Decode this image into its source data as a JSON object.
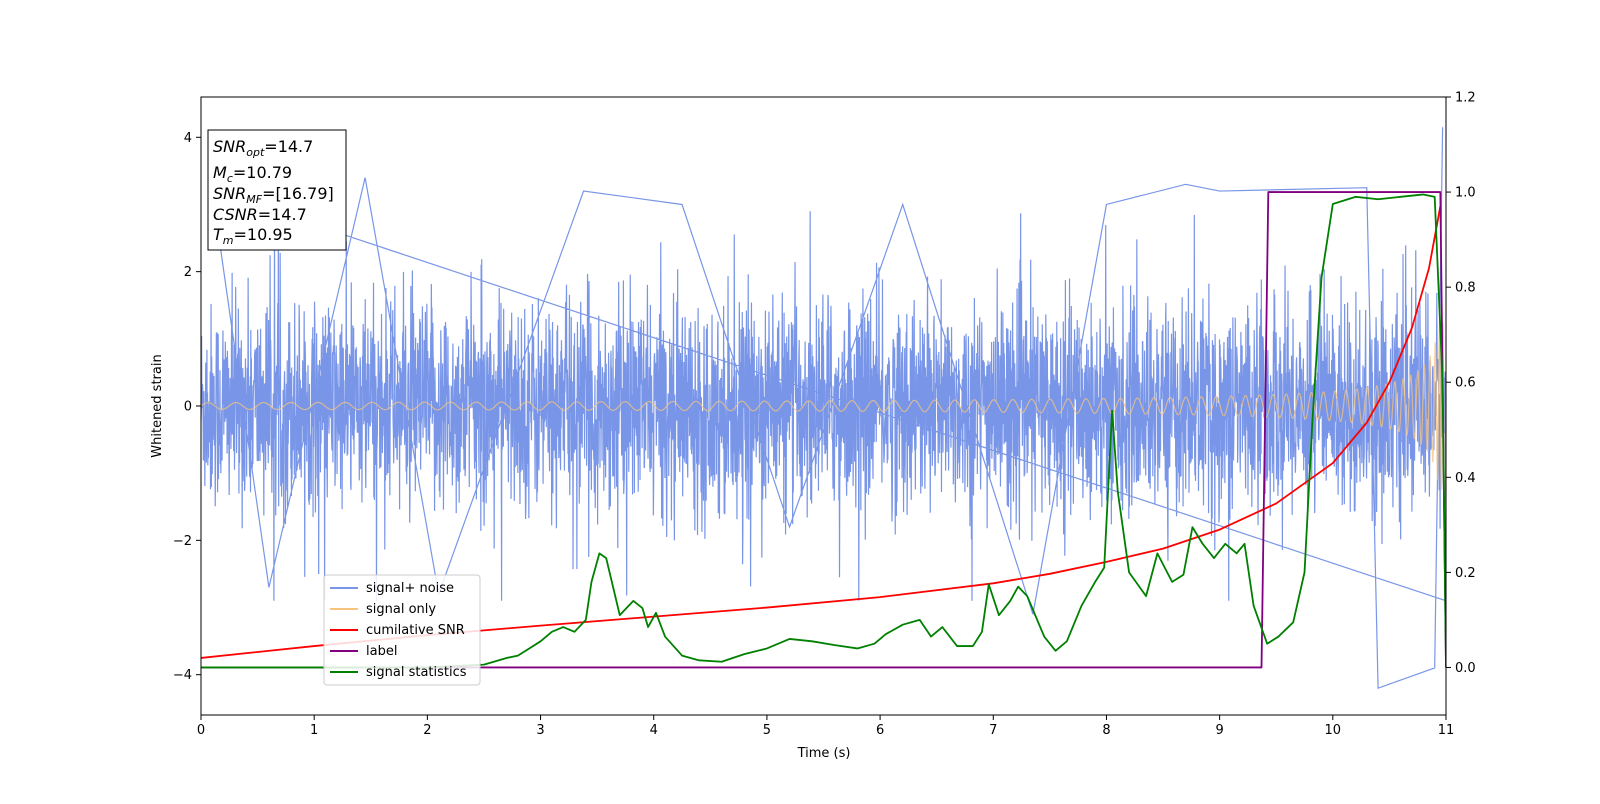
{
  "chart_data": {
    "type": "line",
    "xlabel": "Time (s)",
    "ylabel": "Whitened strain",
    "xlim": [
      0,
      11
    ],
    "ylim": [
      -4.6,
      4.6
    ],
    "y2lim": [
      -0.1,
      1.2
    ],
    "x_ticks": [
      "0",
      "1",
      "2",
      "3",
      "4",
      "5",
      "6",
      "7",
      "8",
      "9",
      "10",
      "11"
    ],
    "y_ticks": [
      "-4",
      "-2",
      "0",
      "2",
      "4"
    ],
    "y2_ticks": [
      "0.0",
      "0.2",
      "0.4",
      "0.6",
      "0.8",
      "1.0",
      "1.2"
    ],
    "grid": false,
    "legend_position": "lower-left",
    "info_box": {
      "snr_opt": {
        "base": "SNR",
        "sub": "opt",
        "value": "=14.7"
      },
      "mc": {
        "base": "M",
        "sub": "c",
        "value": "=10.79"
      },
      "snr_mf": {
        "base": "SNR",
        "sub": "MF",
        "value": "=[16.79]"
      },
      "csnr": {
        "base": "CSNR",
        "value": "=14.7"
      },
      "tm": {
        "base": "T",
        "sub": "m",
        "value": "=10.95"
      }
    },
    "series": [
      {
        "name": "signal+ noise",
        "color": "#7895e8",
        "axis": "left",
        "kind": "noise",
        "band_sd": 0.75,
        "peaks": [
          [
            0.1,
            3.2
          ],
          [
            0.6,
            -2.7
          ],
          [
            1.45,
            3.4
          ],
          [
            2.1,
            -2.8
          ],
          [
            3.38,
            3.2
          ],
          [
            4.25,
            3.0
          ],
          [
            5.2,
            -1.8
          ],
          [
            6.2,
            3.0
          ],
          [
            7.35,
            -3.1
          ],
          [
            8.0,
            3.0
          ],
          [
            8.7,
            3.3
          ],
          [
            9.0,
            3.2
          ],
          [
            10.3,
            3.25
          ],
          [
            10.4,
            -4.2
          ],
          [
            10.9,
            -3.9
          ],
          [
            10.97,
            4.15
          ]
        ]
      },
      {
        "name": "signal only",
        "color": "#f6c47f",
        "axis": "left",
        "kind": "chirp",
        "tc": 11.0,
        "amp_start": 0.05,
        "amp_end": 1.25
      },
      {
        "name": "cumilative SNR",
        "color": "#ff0000",
        "axis": "right",
        "points": [
          [
            0,
            0.02
          ],
          [
            1,
            0.045
          ],
          [
            2,
            0.068
          ],
          [
            3,
            0.088
          ],
          [
            4,
            0.107
          ],
          [
            5,
            0.126
          ],
          [
            6,
            0.148
          ],
          [
            7,
            0.177
          ],
          [
            7.5,
            0.197
          ],
          [
            8,
            0.222
          ],
          [
            8.5,
            0.25
          ],
          [
            9,
            0.29
          ],
          [
            9.5,
            0.345
          ],
          [
            10,
            0.43
          ],
          [
            10.3,
            0.515
          ],
          [
            10.5,
            0.6
          ],
          [
            10.7,
            0.715
          ],
          [
            10.85,
            0.84
          ],
          [
            10.95,
            0.97
          ]
        ]
      },
      {
        "name": "label",
        "color": "#800080",
        "axis": "right",
        "points": [
          [
            0,
            0
          ],
          [
            9.37,
            0
          ],
          [
            9.43,
            1.0
          ],
          [
            10.95,
            1.0
          ],
          [
            11.0,
            0.0
          ]
        ]
      },
      {
        "name": "signal statistics",
        "color": "#008000",
        "axis": "right",
        "points": [
          [
            0,
            0
          ],
          [
            1,
            0
          ],
          [
            2,
            0
          ],
          [
            2.5,
            0.006
          ],
          [
            2.7,
            0.02
          ],
          [
            2.8,
            0.025
          ],
          [
            2.9,
            0.04
          ],
          [
            3.0,
            0.055
          ],
          [
            3.1,
            0.075
          ],
          [
            3.2,
            0.085
          ],
          [
            3.3,
            0.075
          ],
          [
            3.4,
            0.1
          ],
          [
            3.45,
            0.18
          ],
          [
            3.52,
            0.24
          ],
          [
            3.58,
            0.23
          ],
          [
            3.7,
            0.11
          ],
          [
            3.82,
            0.14
          ],
          [
            3.9,
            0.125
          ],
          [
            3.95,
            0.085
          ],
          [
            4.02,
            0.115
          ],
          [
            4.1,
            0.065
          ],
          [
            4.25,
            0.025
          ],
          [
            4.4,
            0.015
          ],
          [
            4.6,
            0.012
          ],
          [
            4.8,
            0.028
          ],
          [
            5.0,
            0.04
          ],
          [
            5.2,
            0.06
          ],
          [
            5.4,
            0.055
          ],
          [
            5.6,
            0.047
          ],
          [
            5.8,
            0.04
          ],
          [
            5.95,
            0.05
          ],
          [
            6.05,
            0.07
          ],
          [
            6.2,
            0.09
          ],
          [
            6.35,
            0.1
          ],
          [
            6.45,
            0.065
          ],
          [
            6.55,
            0.085
          ],
          [
            6.68,
            0.045
          ],
          [
            6.82,
            0.045
          ],
          [
            6.9,
            0.075
          ],
          [
            6.96,
            0.175
          ],
          [
            7.05,
            0.11
          ],
          [
            7.15,
            0.14
          ],
          [
            7.22,
            0.17
          ],
          [
            7.3,
            0.15
          ],
          [
            7.45,
            0.065
          ],
          [
            7.55,
            0.035
          ],
          [
            7.65,
            0.055
          ],
          [
            7.78,
            0.13
          ],
          [
            7.9,
            0.18
          ],
          [
            7.98,
            0.21
          ],
          [
            8.05,
            0.54
          ],
          [
            8.1,
            0.37
          ],
          [
            8.2,
            0.2
          ],
          [
            8.35,
            0.15
          ],
          [
            8.45,
            0.24
          ],
          [
            8.58,
            0.18
          ],
          [
            8.68,
            0.195
          ],
          [
            8.76,
            0.295
          ],
          [
            8.85,
            0.26
          ],
          [
            8.95,
            0.23
          ],
          [
            9.05,
            0.26
          ],
          [
            9.15,
            0.24
          ],
          [
            9.22,
            0.26
          ],
          [
            9.3,
            0.13
          ],
          [
            9.42,
            0.05
          ],
          [
            9.52,
            0.065
          ],
          [
            9.65,
            0.095
          ],
          [
            9.75,
            0.2
          ],
          [
            9.82,
            0.52
          ],
          [
            9.9,
            0.82
          ],
          [
            10.0,
            0.975
          ],
          [
            10.2,
            0.99
          ],
          [
            10.4,
            0.985
          ],
          [
            10.6,
            0.99
          ],
          [
            10.8,
            0.995
          ],
          [
            10.9,
            0.99
          ],
          [
            10.97,
            0.6
          ],
          [
            11.0,
            0.0
          ]
        ]
      }
    ]
  }
}
